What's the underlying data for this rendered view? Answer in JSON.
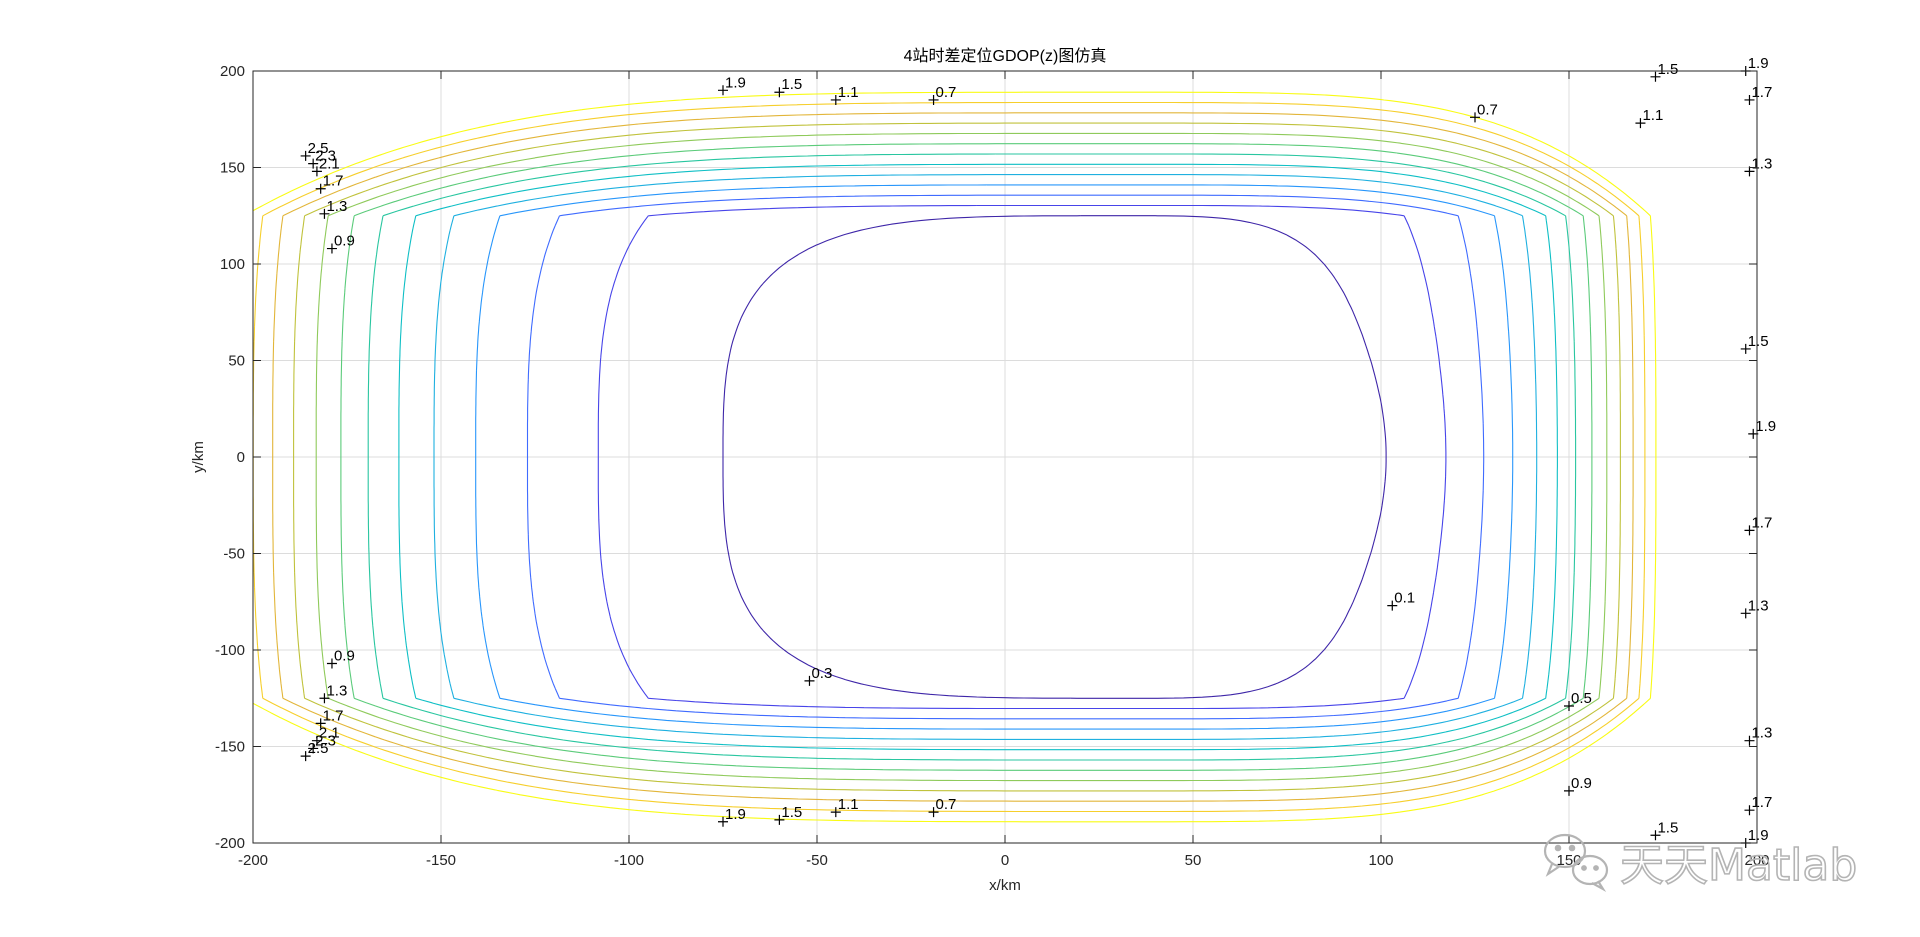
{
  "chart_data": {
    "type": "contour",
    "title": "4站时差定位GDOP(z)图仿真",
    "xlabel": "x/km",
    "ylabel": "y/km",
    "xlim": [
      -200,
      200
    ],
    "ylim": [
      -200,
      200
    ],
    "xticks": [
      "-200",
      "-150",
      "-100",
      "-50",
      "0",
      "50",
      "100",
      "150",
      "200"
    ],
    "yticks": [
      "-200",
      "-150",
      "-100",
      "-50",
      "0",
      "50",
      "100",
      "150",
      "200"
    ],
    "grid": true,
    "colormap": "parula",
    "contour_levels": [
      0.1,
      0.3,
      0.5,
      0.7,
      0.9,
      1.1,
      1.3,
      1.5,
      1.7,
      1.9,
      2.1,
      2.3,
      2.5
    ],
    "level_colors": [
      "#3e26a8",
      "#4744e9",
      "#3f6bff",
      "#2896fb",
      "#1fb0e0",
      "#0fbfc5",
      "#29c6a0",
      "#5bcb7a",
      "#8fca5b",
      "#c0c23c",
      "#e2b63a",
      "#f6cf2c",
      "#f9fb15"
    ],
    "contour_labels": [
      {
        "text": "0.1",
        "x": 103,
        "y": -77
      },
      {
        "text": "0.3",
        "x": -52,
        "y": -116
      },
      {
        "text": "0.5",
        "x": 150,
        "y": -129
      },
      {
        "text": "0.7",
        "x": -19,
        "y": 185
      },
      {
        "text": "0.7",
        "x": 125,
        "y": 176
      },
      {
        "text": "0.7",
        "x": -19,
        "y": -184
      },
      {
        "text": "0.9",
        "x": -179,
        "y": 108
      },
      {
        "text": "0.9",
        "x": -179,
        "y": -107
      },
      {
        "text": "0.9",
        "x": 150,
        "y": -173
      },
      {
        "text": "1.1",
        "x": -45,
        "y": 185
      },
      {
        "text": "1.1",
        "x": 169,
        "y": 173
      },
      {
        "text": "1.1",
        "x": -45,
        "y": -184
      },
      {
        "text": "1.3",
        "x": -181,
        "y": 126
      },
      {
        "text": "1.3",
        "x": -181,
        "y": -125
      },
      {
        "text": "1.3",
        "x": 198,
        "y": 148
      },
      {
        "text": "1.3",
        "x": 197,
        "y": -81
      },
      {
        "text": "1.3",
        "x": 198,
        "y": -147
      },
      {
        "text": "1.5",
        "x": -60,
        "y": 189
      },
      {
        "text": "1.5",
        "x": 173,
        "y": 197
      },
      {
        "text": "1.5",
        "x": 197,
        "y": 56
      },
      {
        "text": "1.5",
        "x": -60,
        "y": -188
      },
      {
        "text": "1.5",
        "x": 173,
        "y": -196
      },
      {
        "text": "1.7",
        "x": -182,
        "y": 139
      },
      {
        "text": "1.7",
        "x": -182,
        "y": -138
      },
      {
        "text": "1.7",
        "x": 198,
        "y": 185
      },
      {
        "text": "1.7",
        "x": 198,
        "y": -38
      },
      {
        "text": "1.7",
        "x": 198,
        "y": -183
      },
      {
        "text": "1.9",
        "x": -75,
        "y": 190
      },
      {
        "text": "1.9",
        "x": 197,
        "y": 200
      },
      {
        "text": "1.9",
        "x": 199,
        "y": 12
      },
      {
        "text": "1.9",
        "x": -75,
        "y": -189
      },
      {
        "text": "1.9",
        "x": 197,
        "y": -200
      },
      {
        "text": "2.1",
        "x": -183,
        "y": 148
      },
      {
        "text": "2.1",
        "x": -183,
        "y": -147
      },
      {
        "text": "2.3",
        "x": -184,
        "y": 152
      },
      {
        "text": "2.3",
        "x": -184,
        "y": -151
      },
      {
        "text": "2.5",
        "x": -186,
        "y": 156
      },
      {
        "text": "2.5",
        "x": -186,
        "y": -155
      }
    ]
  },
  "watermark": {
    "text": "天天Matlab",
    "icon": "wechat-icon"
  }
}
